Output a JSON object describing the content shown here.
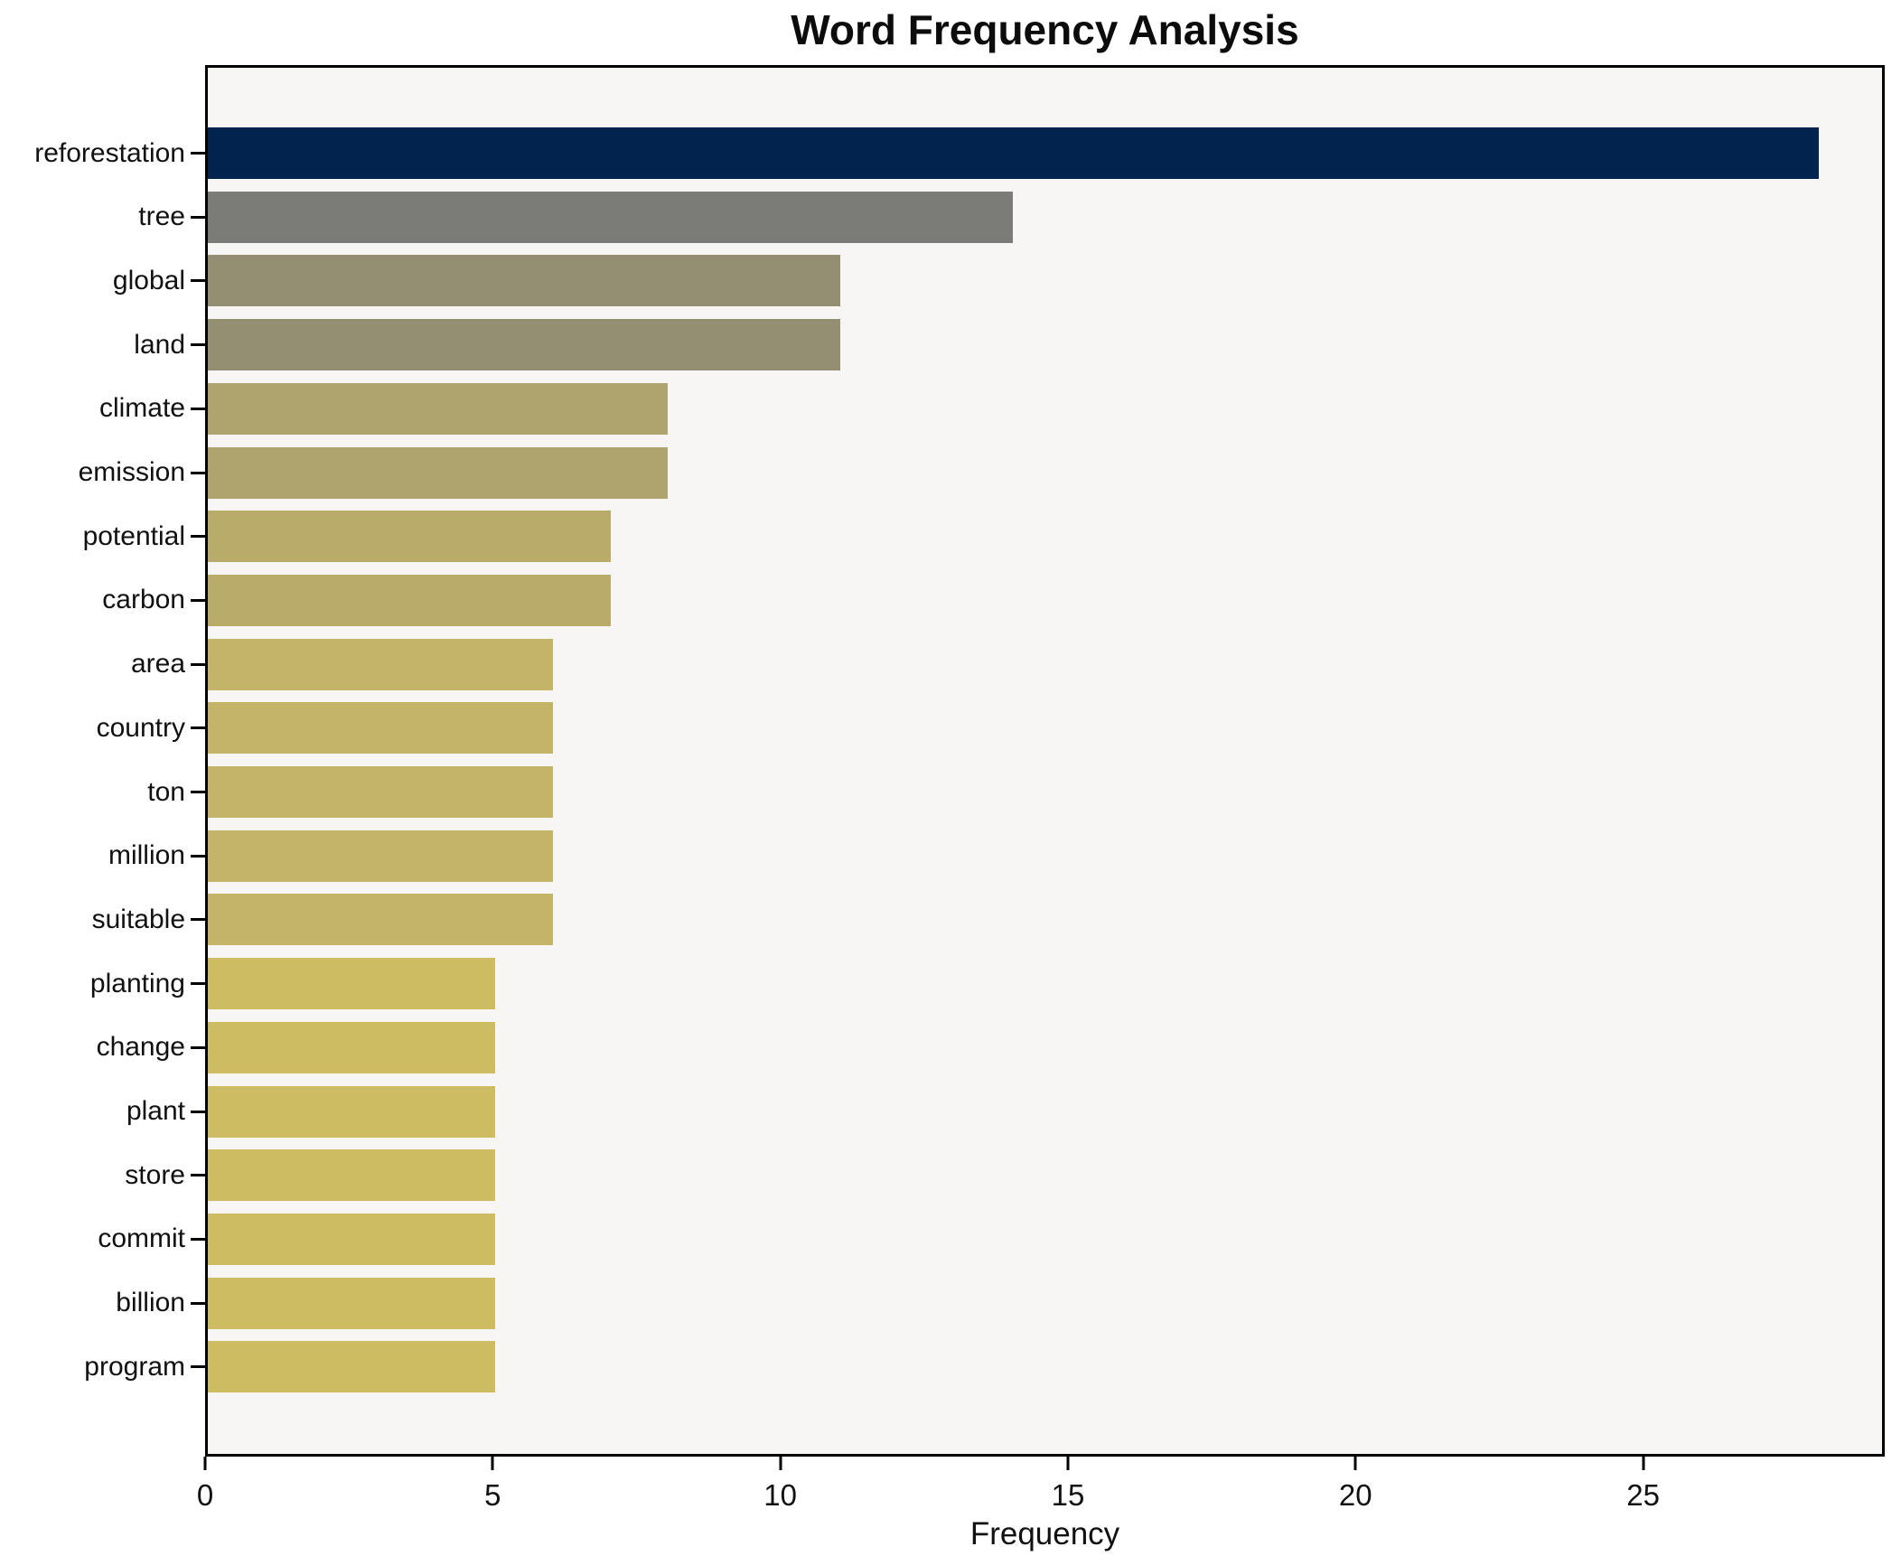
{
  "chart_data": {
    "type": "bar",
    "orientation": "horizontal",
    "title": "Word Frequency Analysis",
    "xlabel": "Frequency",
    "ylabel": "",
    "categories": [
      "reforestation",
      "tree",
      "global",
      "land",
      "climate",
      "emission",
      "potential",
      "carbon",
      "area",
      "country",
      "ton",
      "million",
      "suitable",
      "planting",
      "change",
      "plant",
      "store",
      "commit",
      "billion",
      "program"
    ],
    "values": [
      28,
      14,
      11,
      11,
      8,
      8,
      7,
      7,
      6,
      6,
      6,
      6,
      6,
      5,
      5,
      5,
      5,
      5,
      5,
      5
    ],
    "bar_colors": [
      "#02234E",
      "#7B7B77",
      "#948F72",
      "#948F72",
      "#AFA46D",
      "#AFA46D",
      "#B9AB6A",
      "#B9AB6A",
      "#C3B467",
      "#C3B467",
      "#C3B467",
      "#C3B467",
      "#C3B467",
      "#CEBC63",
      "#CEBC63",
      "#CEBC63",
      "#CEBC63",
      "#CEBC63",
      "#CEBC63",
      "#CEBC63"
    ],
    "xlim": [
      0,
      29.2
    ],
    "xticks": [
      0,
      5,
      10,
      15,
      20,
      25
    ],
    "grid": false,
    "legend_position": "none",
    "plot_bg_color": "#F7F6F4",
    "figure_bg_color": "#FFFFFF",
    "spine_color": "#000000",
    "title_color": "#0C0C0C"
  }
}
